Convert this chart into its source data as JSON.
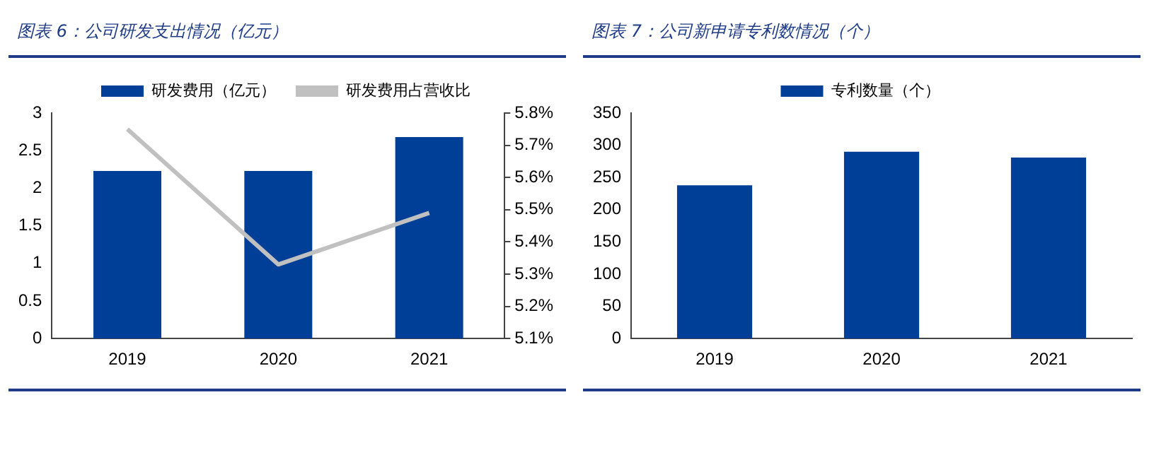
{
  "chart_data": [
    {
      "type": "bar",
      "title": "图表 6：公司研发支出情况（亿元）",
      "categories": [
        "2019",
        "2020",
        "2021"
      ],
      "series": [
        {
          "name": "研发费用（亿元）",
          "color": "#003f98",
          "values": [
            2.23,
            2.23,
            2.68
          ]
        },
        {
          "name": "研发费用占营收比",
          "type": "line",
          "axis": "y2",
          "color": "#c0c0c0",
          "values": [
            5.75,
            5.33,
            5.49
          ]
        }
      ],
      "ylim": [
        0,
        3
      ],
      "yticks": [
        0,
        0.5,
        1,
        1.5,
        2,
        2.5,
        3
      ],
      "y2lim": [
        5.1,
        5.8
      ],
      "y2ticks": [
        {
          "value": 5.1,
          "label": "5.1%"
        },
        {
          "value": 5.2,
          "label": "5.2%"
        },
        {
          "value": 5.3,
          "label": "5.3%"
        },
        {
          "value": 5.4,
          "label": "5.4%"
        },
        {
          "value": 5.5,
          "label": "5.5%"
        },
        {
          "value": 5.6,
          "label": "5.6%"
        },
        {
          "value": 5.7,
          "label": "5.7%"
        },
        {
          "value": 5.8,
          "label": "5.8%"
        }
      ],
      "grid": false,
      "legend": "top",
      "marker": "none"
    },
    {
      "type": "bar",
      "title": "图表 7：公司新申请专利数情况（个）",
      "categories": [
        "2019",
        "2020",
        "2021"
      ],
      "series": [
        {
          "name": "专利数量（个）",
          "color": "#003f98",
          "values": [
            238,
            290,
            281
          ]
        }
      ],
      "ylim": [
        0,
        350
      ],
      "yticks": [
        0,
        50,
        100,
        150,
        200,
        250,
        300,
        350
      ],
      "grid": false,
      "legend": "top"
    }
  ]
}
